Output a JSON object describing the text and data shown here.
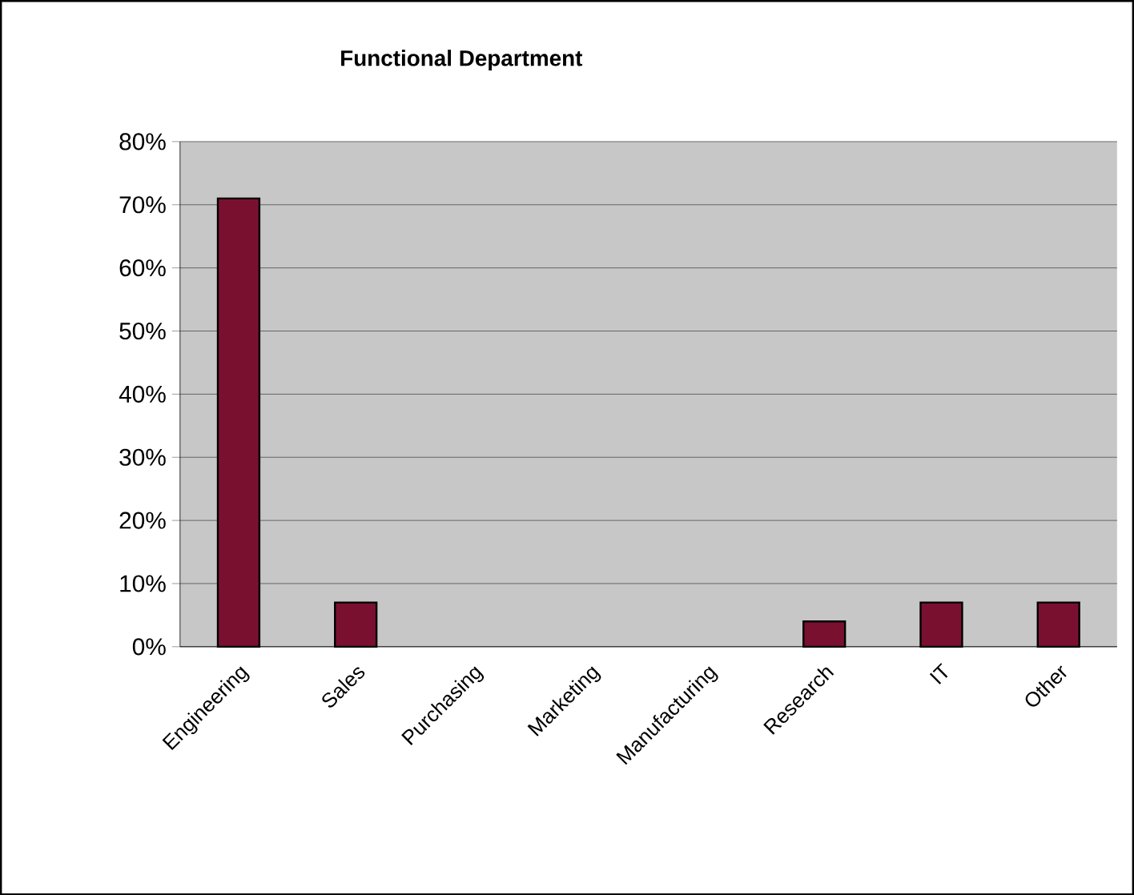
{
  "chart_data": {
    "type": "bar",
    "title": "Functional Department",
    "categories": [
      "Engineering",
      "Sales",
      "Purchasing",
      "Marketing",
      "Manufacturing",
      "Research",
      "IT",
      "Other"
    ],
    "values": [
      71,
      7,
      0,
      0,
      0,
      4,
      7,
      7
    ],
    "color": "#7a1030",
    "ylim": [
      0,
      80
    ],
    "yticks": [
      {
        "value": 0,
        "label": "0%"
      },
      {
        "value": 10,
        "label": "10%"
      },
      {
        "value": 20,
        "label": "20%"
      },
      {
        "value": 30,
        "label": "30%"
      },
      {
        "value": 40,
        "label": "40%"
      },
      {
        "value": 50,
        "label": "50%"
      },
      {
        "value": 60,
        "label": "60%"
      },
      {
        "value": 70,
        "label": "70%"
      },
      {
        "value": 80,
        "label": "80%"
      }
    ],
    "grid": "y"
  }
}
